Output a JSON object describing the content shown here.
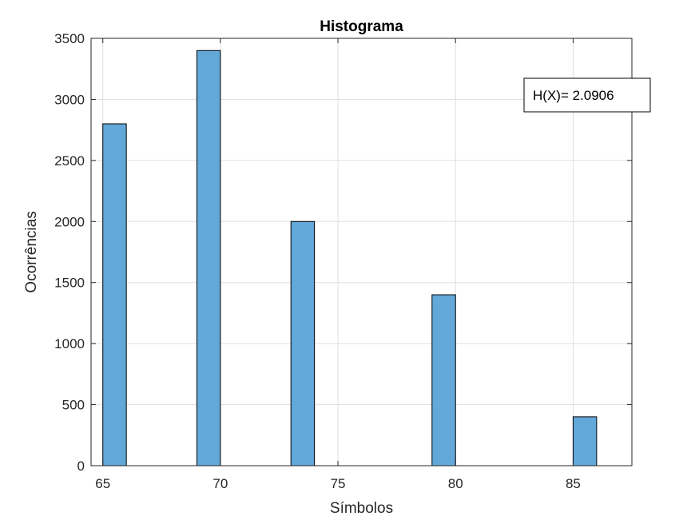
{
  "chart_data": {
    "type": "bar",
    "title": "Histograma",
    "xlabel": "Símbolos",
    "ylabel": "Ocorrências",
    "x": [
      65.5,
      69.5,
      73.5,
      79.5,
      85.5
    ],
    "values": [
      2800,
      3400,
      2000,
      1400,
      400
    ],
    "bin_width": 1,
    "xlim": [
      64.5,
      87.5
    ],
    "ylim": [
      0,
      3500
    ],
    "xticks": [
      65,
      70,
      75,
      80,
      85
    ],
    "yticks": [
      0,
      500,
      1000,
      1500,
      2000,
      2500,
      3000,
      3500
    ],
    "grid": true,
    "annotation": "H(X)= 2.0906",
    "bar_color": "#62a8d8",
    "edge_color": "#000000"
  }
}
